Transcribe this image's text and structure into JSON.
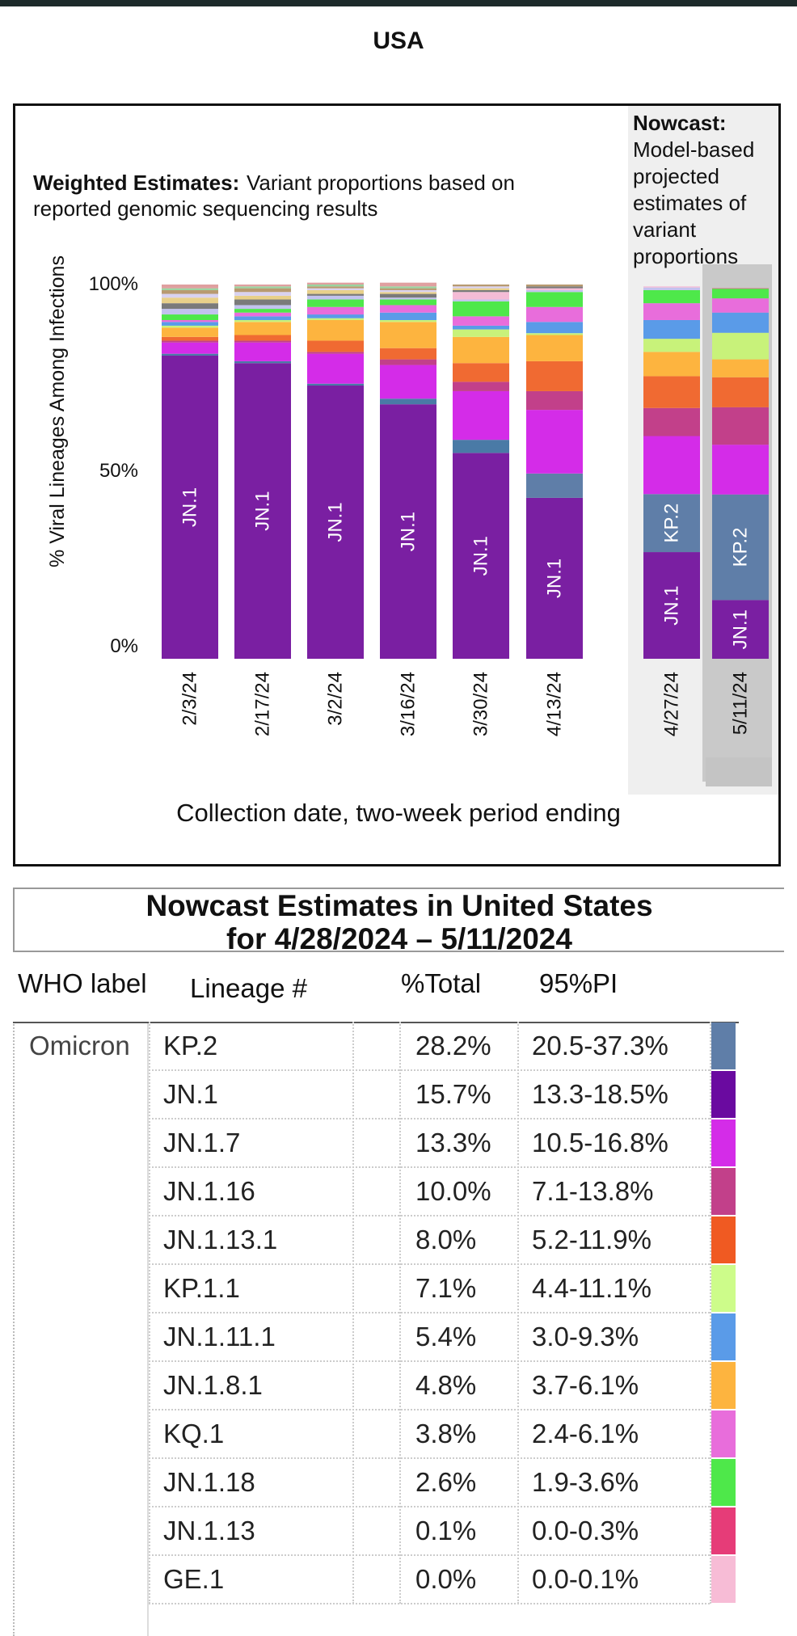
{
  "region_title": "USA",
  "chart_data": {
    "type": "bar",
    "stacked": true,
    "weighted_heading_bold": "Weighted Estimates:",
    "weighted_heading_text": "Variant proportions based on reported genomic sequencing results",
    "weighted_heading_lines": [
      "Variant proportions based on",
      "reported genomic sequencing results"
    ],
    "nowcast_heading_bold": "Nowcast:",
    "nowcast_heading_lines": [
      "Model-based",
      "projected",
      "estimates of",
      "variant",
      "proportions"
    ],
    "xlabel": "Collection date, two-week period ending",
    "ylabel": "% Viral Lineages Among Infections",
    "yticks": [
      "100%",
      "50%",
      "0%"
    ],
    "ylim": [
      0,
      100
    ],
    "categories": [
      "2/3/24",
      "2/17/24",
      "3/2/24",
      "3/16/24",
      "3/30/24",
      "4/13/24",
      "4/27/24",
      "5/11/24"
    ],
    "nowcast_categories": [
      "4/27/24",
      "5/11/24"
    ],
    "lineage_colors": {
      "JN.1": "#7a1fa2",
      "JN.1.4": "#4a7aa6",
      "KP.2": "#5f7ea8",
      "JN.1.7": "#d42ce8",
      "JN.1.16": "#c2408a",
      "JN.1.13.1": "#f06a32",
      "JN.1.8.1": "#fdb43f",
      "KP.1.1": "#c8f27a",
      "JN.1.11.1": "#5a9be8",
      "KQ.1": "#e86ddb",
      "JN.1.18": "#4ee84a",
      "JN.1.13": "#e64a78",
      "GE.1": "#f5bcd6",
      "Other1": "#c2c2ee",
      "Other2": "#7a7a7a",
      "Other3": "#e8d08a",
      "Other4": "#d9d2f0",
      "Other5": "#b89a70",
      "Other6": "#9ad4a0",
      "Other7": "#e0a0a0"
    },
    "bar_label_series": [
      "JN.1",
      "KP.2"
    ],
    "bars": [
      {
        "date": "2/3/24",
        "segments": [
          {
            "lineage": "JN.1",
            "value": 81
          },
          {
            "lineage": "JN.1.4",
            "value": 0.5
          },
          {
            "lineage": "JN.1.7",
            "value": 3
          },
          {
            "lineage": "JN.1.16",
            "value": 0.5
          },
          {
            "lineage": "JN.1.13.1",
            "value": 1.0
          },
          {
            "lineage": "JN.1.8.1",
            "value": 2.5
          },
          {
            "lineage": "KP.1.1",
            "value": 0.5
          },
          {
            "lineage": "JN.1.11.1",
            "value": 1.0
          },
          {
            "lineage": "KQ.1",
            "value": 0.5
          },
          {
            "lineage": "JN.1.18",
            "value": 1.5
          },
          {
            "lineage": "Other1",
            "value": 1.5
          },
          {
            "lineage": "Other2",
            "value": 1.5
          },
          {
            "lineage": "Other3",
            "value": 1.5
          },
          {
            "lineage": "Other4",
            "value": 1.0
          },
          {
            "lineage": "Other5",
            "value": 1.0
          },
          {
            "lineage": "Other6",
            "value": 0.5
          },
          {
            "lineage": "Other7",
            "value": 1.0
          }
        ]
      },
      {
        "date": "2/17/24",
        "segments": [
          {
            "lineage": "JN.1",
            "value": 79
          },
          {
            "lineage": "JN.1.4",
            "value": 0.5
          },
          {
            "lineage": "JN.1.7",
            "value": 5
          },
          {
            "lineage": "JN.1.16",
            "value": 0.5
          },
          {
            "lineage": "JN.1.13.1",
            "value": 1.5
          },
          {
            "lineage": "JN.1.8.1",
            "value": 3.5
          },
          {
            "lineage": "KP.1.1",
            "value": 0.5
          },
          {
            "lineage": "JN.1.11.1",
            "value": 1.0
          },
          {
            "lineage": "KQ.1",
            "value": 1.0
          },
          {
            "lineage": "JN.1.18",
            "value": 1.0
          },
          {
            "lineage": "Other1",
            "value": 1.0
          },
          {
            "lineage": "Other2",
            "value": 1.5
          },
          {
            "lineage": "Other3",
            "value": 1.0
          },
          {
            "lineage": "Other4",
            "value": 1.0
          },
          {
            "lineage": "Other5",
            "value": 1.0
          },
          {
            "lineage": "Other6",
            "value": 0.5
          },
          {
            "lineage": "Other7",
            "value": 0.5
          }
        ]
      },
      {
        "date": "3/2/24",
        "segments": [
          {
            "lineage": "JN.1",
            "value": 73
          },
          {
            "lineage": "JN.1.4",
            "value": 0.5
          },
          {
            "lineage": "JN.1.7",
            "value": 8
          },
          {
            "lineage": "JN.1.16",
            "value": 0.5
          },
          {
            "lineage": "JN.1.13.1",
            "value": 3
          },
          {
            "lineage": "JN.1.8.1",
            "value": 5.5
          },
          {
            "lineage": "KP.1.1",
            "value": 0.5
          },
          {
            "lineage": "JN.1.11.1",
            "value": 1.0
          },
          {
            "lineage": "KQ.1",
            "value": 2.0
          },
          {
            "lineage": "JN.1.18",
            "value": 2.0
          },
          {
            "lineage": "Other1",
            "value": 1.0
          },
          {
            "lineage": "Other2",
            "value": 0.5
          },
          {
            "lineage": "Other3",
            "value": 1.0
          },
          {
            "lineage": "Other4",
            "value": 0.5
          },
          {
            "lineage": "Other5",
            "value": 0.5
          },
          {
            "lineage": "Other6",
            "value": 0.5
          },
          {
            "lineage": "Other7",
            "value": 0.5
          }
        ]
      },
      {
        "date": "3/16/24",
        "segments": [
          {
            "lineage": "JN.1",
            "value": 68
          },
          {
            "lineage": "JN.1.4",
            "value": 1.5
          },
          {
            "lineage": "JN.1.7",
            "value": 9
          },
          {
            "lineage": "JN.1.16",
            "value": 1.5
          },
          {
            "lineage": "JN.1.13.1",
            "value": 3
          },
          {
            "lineage": "JN.1.8.1",
            "value": 7
          },
          {
            "lineage": "KP.1.1",
            "value": 0.5
          },
          {
            "lineage": "JN.1.11.1",
            "value": 2.0
          },
          {
            "lineage": "KQ.1",
            "value": 2.0
          },
          {
            "lineage": "JN.1.18",
            "value": 1.5
          },
          {
            "lineage": "Other1",
            "value": 0.5
          },
          {
            "lineage": "Other2",
            "value": 1.0
          },
          {
            "lineage": "Other3",
            "value": 0.5
          },
          {
            "lineage": "Other4",
            "value": 0.5
          },
          {
            "lineage": "Other5",
            "value": 0.5
          },
          {
            "lineage": "Other6",
            "value": 0.5
          },
          {
            "lineage": "Other7",
            "value": 1.0
          }
        ]
      },
      {
        "date": "3/30/24",
        "segments": [
          {
            "lineage": "JN.1",
            "value": 55
          },
          {
            "lineage": "JN.1.4",
            "value": 3.5
          },
          {
            "lineage": "JN.1.7",
            "value": 13
          },
          {
            "lineage": "JN.1.16",
            "value": 2.5
          },
          {
            "lineage": "JN.1.13.1",
            "value": 5
          },
          {
            "lineage": "JN.1.8.1",
            "value": 7
          },
          {
            "lineage": "KP.1.1",
            "value": 2.0
          },
          {
            "lineage": "JN.1.11.1",
            "value": 1.0
          },
          {
            "lineage": "KQ.1",
            "value": 2.5
          },
          {
            "lineage": "JN.1.18",
            "value": 4
          },
          {
            "lineage": "Other1",
            "value": 0.5
          },
          {
            "lineage": "GE.1",
            "value": 2.0
          },
          {
            "lineage": "Other2",
            "value": 0.5
          },
          {
            "lineage": "Other3",
            "value": 0.5
          },
          {
            "lineage": "Other4",
            "value": 0.5
          },
          {
            "lineage": "Other5",
            "value": 0.5
          }
        ]
      },
      {
        "date": "4/13/24",
        "segments": [
          {
            "lineage": "JN.1",
            "value": 43
          },
          {
            "lineage": "KP.2",
            "value": 6.5
          },
          {
            "lineage": "JN.1.7",
            "value": 17
          },
          {
            "lineage": "JN.1.16",
            "value": 5
          },
          {
            "lineage": "JN.1.13.1",
            "value": 8
          },
          {
            "lineage": "JN.1.8.1",
            "value": 7
          },
          {
            "lineage": "KP.1.1",
            "value": 0.5
          },
          {
            "lineage": "JN.1.11.1",
            "value": 3
          },
          {
            "lineage": "KQ.1",
            "value": 4
          },
          {
            "lineage": "JN.1.18",
            "value": 4
          },
          {
            "lineage": "Other1",
            "value": 0.5
          },
          {
            "lineage": "GE.1",
            "value": 0.5
          },
          {
            "lineage": "Other2",
            "value": 0.5
          },
          {
            "lineage": "Other5",
            "value": 0.5
          }
        ]
      },
      {
        "date": "4/27/24",
        "nowcast": true,
        "segments": [
          {
            "lineage": "JN.1",
            "value": 28.5
          },
          {
            "lineage": "KP.2",
            "value": 15.5
          },
          {
            "lineage": "JN.1.7",
            "value": 15.5
          },
          {
            "lineage": "JN.1.16",
            "value": 7.5
          },
          {
            "lineage": "JN.1.13.1",
            "value": 8.5
          },
          {
            "lineage": "JN.1.8.1",
            "value": 6.5
          },
          {
            "lineage": "KP.1.1",
            "value": 3.5
          },
          {
            "lineage": "JN.1.11.1",
            "value": 5
          },
          {
            "lineage": "KQ.1",
            "value": 4.5
          },
          {
            "lineage": "JN.1.18",
            "value": 3.5
          },
          {
            "lineage": "Other1",
            "value": 0.7
          },
          {
            "lineage": "GE.1",
            "value": 0.3
          }
        ]
      },
      {
        "date": "5/11/24",
        "nowcast": true,
        "segments": [
          {
            "lineage": "JN.1",
            "value": 15.7
          },
          {
            "lineage": "KP.2",
            "value": 28.2
          },
          {
            "lineage": "JN.1.7",
            "value": 13.3
          },
          {
            "lineage": "JN.1.16",
            "value": 10.0
          },
          {
            "lineage": "JN.1.13.1",
            "value": 8.0
          },
          {
            "lineage": "JN.1.8.1",
            "value": 4.8
          },
          {
            "lineage": "KP.1.1",
            "value": 7.1
          },
          {
            "lineage": "JN.1.11.1",
            "value": 5.4
          },
          {
            "lineage": "KQ.1",
            "value": 3.8
          },
          {
            "lineage": "JN.1.18",
            "value": 2.6
          },
          {
            "lineage": "JN.1.13",
            "value": 0.1
          }
        ]
      }
    ]
  },
  "table": {
    "title_line1": "Nowcast Estimates in United States",
    "title_line2": "for 4/28/2024 – 5/11/2024",
    "headers": {
      "who_label": "WHO label",
      "lineage": "Lineage #",
      "total": "%Total",
      "pi": "95%PI"
    },
    "who_value": "Omicron",
    "rows": [
      {
        "lineage": "KP.2",
        "total": "28.2%",
        "pi": "20.5-37.3%",
        "color": "#5f7ea8"
      },
      {
        "lineage": "JN.1",
        "total": "15.7%",
        "pi": "13.3-18.5%",
        "color": "#6a0aa0"
      },
      {
        "lineage": "JN.1.7",
        "total": "13.3%",
        "pi": "10.5-16.8%",
        "color": "#d42ce8"
      },
      {
        "lineage": "JN.1.16",
        "total": "10.0%",
        "pi": "7.1-13.8%",
        "color": "#c2408a"
      },
      {
        "lineage": "JN.1.13.1",
        "total": "8.0%",
        "pi": "5.2-11.9%",
        "color": "#f05a22"
      },
      {
        "lineage": "KP.1.1",
        "total": "7.1%",
        "pi": "4.4-11.1%",
        "color": "#cdfc8a"
      },
      {
        "lineage": "JN.1.11.1",
        "total": "5.4%",
        "pi": "3.0-9.3%",
        "color": "#5a9be8"
      },
      {
        "lineage": "JN.1.8.1",
        "total": "4.8%",
        "pi": "3.7-6.1%",
        "color": "#fdb43f"
      },
      {
        "lineage": "KQ.1",
        "total": "3.8%",
        "pi": "2.4-6.1%",
        "color": "#e86ddb"
      },
      {
        "lineage": "JN.1.18",
        "total": "2.6%",
        "pi": "1.9-3.6%",
        "color": "#4ee84a"
      },
      {
        "lineage": "JN.1.13",
        "total": "0.1%",
        "pi": "0.0-0.3%",
        "color": "#e63c78"
      },
      {
        "lineage": "GE.1",
        "total": "0.0%",
        "pi": "0.0-0.1%",
        "color": "#f7bcd6"
      }
    ]
  }
}
